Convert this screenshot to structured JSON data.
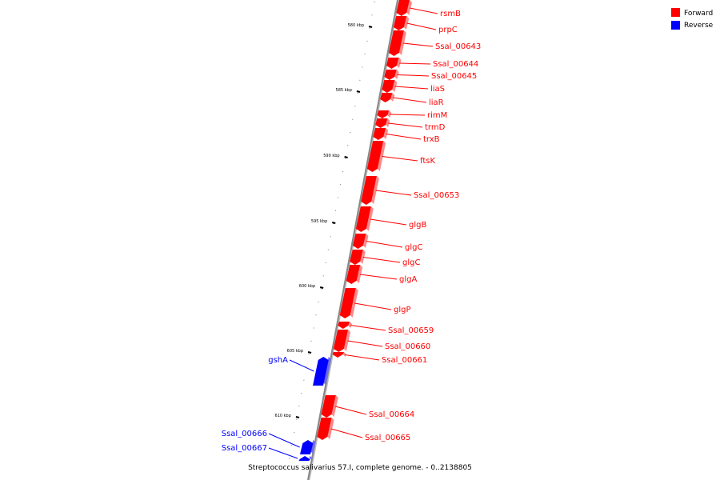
{
  "caption": "Streptococcus salivarius 57.I, complete genome. - 0..2138805",
  "legend": [
    {
      "label": "Forward",
      "color": "#ff0000"
    },
    {
      "label": "Reverse",
      "color": "#0000ff"
    }
  ],
  "colors": {
    "forward": "#ff0000",
    "reverse": "#0000ff",
    "backbone": "#888888"
  },
  "ticks": [
    {
      "label": "580 kbp"
    },
    {
      "label": "585 kbp"
    },
    {
      "label": "590 kbp"
    },
    {
      "label": "595 kbp"
    },
    {
      "label": "600 kbp"
    },
    {
      "label": "605 kbp"
    },
    {
      "label": "610 kbp"
    }
  ],
  "genes": [
    {
      "name": "rsmB",
      "strand": "forward"
    },
    {
      "name": "prpC",
      "strand": "forward"
    },
    {
      "name": "Ssal_00643",
      "strand": "forward"
    },
    {
      "name": "Ssal_00644",
      "strand": "forward"
    },
    {
      "name": "Ssal_00645",
      "strand": "forward"
    },
    {
      "name": "liaS",
      "strand": "forward"
    },
    {
      "name": "liaR",
      "strand": "forward"
    },
    {
      "name": "rimM",
      "strand": "forward"
    },
    {
      "name": "trmD",
      "strand": "forward"
    },
    {
      "name": "trxB",
      "strand": "forward"
    },
    {
      "name": "ftsK",
      "strand": "forward"
    },
    {
      "name": "Ssal_00653",
      "strand": "forward"
    },
    {
      "name": "glgB",
      "strand": "forward"
    },
    {
      "name": "glgC",
      "strand": "forward"
    },
    {
      "name": "glgC",
      "strand": "forward"
    },
    {
      "name": "glgA",
      "strand": "forward"
    },
    {
      "name": "glgP",
      "strand": "forward"
    },
    {
      "name": "Ssal_00659",
      "strand": "forward"
    },
    {
      "name": "Ssal_00660",
      "strand": "forward"
    },
    {
      "name": "Ssal_00661",
      "strand": "forward"
    },
    {
      "name": "gshA",
      "strand": "reverse"
    },
    {
      "name": "Ssal_00664",
      "strand": "forward"
    },
    {
      "name": "Ssal_00665",
      "strand": "forward"
    },
    {
      "name": "Ssal_00666",
      "strand": "reverse"
    },
    {
      "name": "Ssal_00667",
      "strand": "reverse"
    }
  ]
}
